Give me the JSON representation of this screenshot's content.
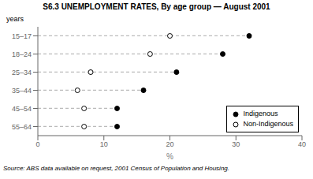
{
  "chart_data": {
    "type": "scatter",
    "title": "S6.3   UNEMPLOYMENT RATES, By age group — August 2001",
    "xlabel": "%",
    "ylabel": "years",
    "source": "Source: ABS data available on request, 2001 Census of Population and Housing.",
    "orientation": "horizontal",
    "categories": [
      "15–17",
      "18–24",
      "25–34",
      "35–44",
      "45–54",
      "55–64"
    ],
    "series": [
      {
        "name": "Indigenous",
        "color": "#000000",
        "marker": "circle",
        "values": [
          32,
          28,
          21,
          16,
          12,
          12
        ]
      },
      {
        "name": "Non-Indigenous",
        "color": "#000000",
        "marker": "open_circle",
        "values": [
          20,
          17,
          8,
          6,
          7,
          7
        ]
      }
    ],
    "xlim": [
      0,
      40
    ],
    "xticks": [
      0,
      10,
      20,
      30,
      40
    ],
    "grid": false,
    "legend": "lower right"
  }
}
